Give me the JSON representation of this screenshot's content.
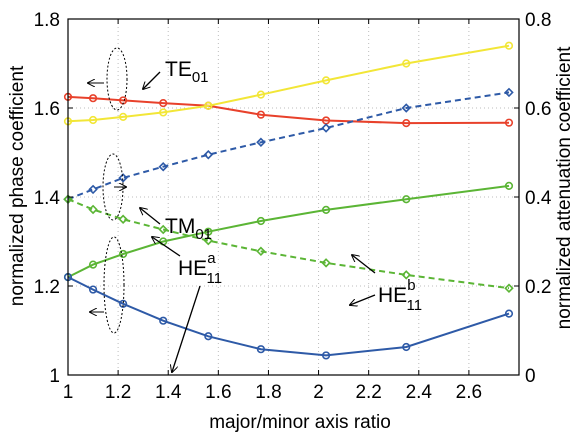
{
  "chart_data": {
    "type": "line",
    "x": [
      1.0,
      1.1,
      1.22,
      1.38,
      1.56,
      1.77,
      2.03,
      2.35,
      2.76
    ],
    "xlabel": "major/minor axis ratio",
    "ylabel_left": "normalized phase coefficient",
    "ylabel_right": "normalized attenuation coefficient",
    "xlim": [
      1.0,
      2.8
    ],
    "ylim_left": [
      1.0,
      1.8
    ],
    "ylim_right": [
      0.0,
      0.8
    ],
    "xticks": [
      "1",
      "1.2",
      "1.4",
      "1.6",
      "1.8",
      "2",
      "2.2",
      "2.4",
      "2.6"
    ],
    "yticks_left": [
      "1",
      "1.2",
      "1.4",
      "1.6",
      "1.8"
    ],
    "yticks_right": [
      "0",
      "0.2",
      "0.4",
      "0.6",
      "0.8"
    ],
    "grid": true,
    "series": [
      {
        "color": "#e8412b",
        "style": "solid",
        "marker": "circle",
        "axis": "left",
        "values": [
          1.625,
          1.622,
          1.617,
          1.611,
          1.605,
          1.585,
          1.572,
          1.566,
          1.567
        ]
      },
      {
        "color": "#f2e637",
        "style": "solid",
        "marker": "circle",
        "axis": "left",
        "values": [
          1.57,
          1.573,
          1.58,
          1.59,
          1.605,
          1.63,
          1.662,
          1.7,
          1.74
        ]
      },
      {
        "color": "#5bb535",
        "style": "solid",
        "marker": "circle",
        "axis": "left",
        "values": [
          1.22,
          1.248,
          1.272,
          1.3,
          1.322,
          1.346,
          1.371,
          1.395,
          1.425
        ]
      },
      {
        "color": "#2e5aa7",
        "style": "solid",
        "marker": "circle",
        "axis": "left",
        "values": [
          1.22,
          1.192,
          1.16,
          1.122,
          1.087,
          1.058,
          1.044,
          1.063,
          1.138
        ]
      },
      {
        "color": "#2e5aa7",
        "style": "dashed",
        "marker": "diamond",
        "axis": "right",
        "values": [
          0.395,
          0.417,
          0.443,
          0.468,
          0.495,
          0.523,
          0.555,
          0.6,
          0.635
        ]
      },
      {
        "color": "#5bb535",
        "style": "dashed",
        "marker": "diamond",
        "axis": "right",
        "values": [
          0.395,
          0.372,
          0.35,
          0.327,
          0.302,
          0.278,
          0.252,
          0.225,
          0.195
        ]
      }
    ],
    "annotations": [
      {
        "main": "TE",
        "sub": "01",
        "sup": ""
      },
      {
        "main": "TM",
        "sub": "01",
        "sup": ""
      },
      {
        "main": "HE",
        "sub": "11",
        "sup": "a"
      },
      {
        "main": "HE",
        "sub": "11",
        "sup": "b"
      }
    ]
  }
}
